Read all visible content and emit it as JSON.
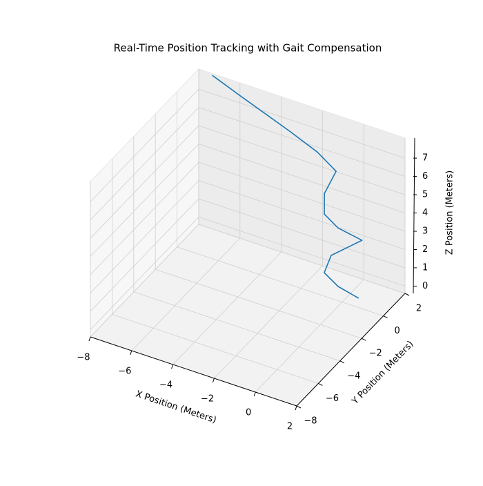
{
  "chart_data": {
    "type": "line3d",
    "title": "Real-Time Position Tracking with Gait Compensation",
    "xlabel": "X Position (Meters)",
    "ylabel": "Y Position (Meters)",
    "zlabel": "Z Position (Meters)",
    "x": [
      -7.34,
      -5.96,
      -3.5,
      -2.08,
      -1.03,
      -1.13,
      -0.92,
      -0.38,
      0.61,
      -0.5,
      -0.66,
      -0.05,
      0.73
    ],
    "y": [
      2.0,
      2.08,
      1.83,
      1.67,
      1.41,
      0.52,
      0.11,
      0.35,
      0.67,
      -0.06,
      -0.39,
      -0.27,
      0.14
    ],
    "z": [
      8.0,
      7.3,
      6.5,
      6.0,
      5.5,
      4.8,
      4.0,
      3.3,
      2.8,
      2.0,
      1.2,
      0.6,
      0.0
    ],
    "color": "#1f77b4",
    "xlim": [
      -8,
      2
    ],
    "ylim": [
      -8,
      2
    ],
    "zlim": [
      -0.4,
      8.1
    ],
    "xticks": [
      {
        "value": -8,
        "label": "−8"
      },
      {
        "value": -6,
        "label": "−6"
      },
      {
        "value": -4,
        "label": "−4"
      },
      {
        "value": -2,
        "label": "−2"
      },
      0,
      2
    ],
    "yticks": [
      {
        "value": -8,
        "label": "−8"
      },
      {
        "value": -6,
        "label": "−6"
      },
      {
        "value": -4,
        "label": "−4"
      },
      {
        "value": -2,
        "label": "−2"
      },
      0,
      2
    ],
    "zticks": [
      0,
      1,
      2,
      3,
      4,
      5,
      6,
      7
    ],
    "grid": true
  }
}
